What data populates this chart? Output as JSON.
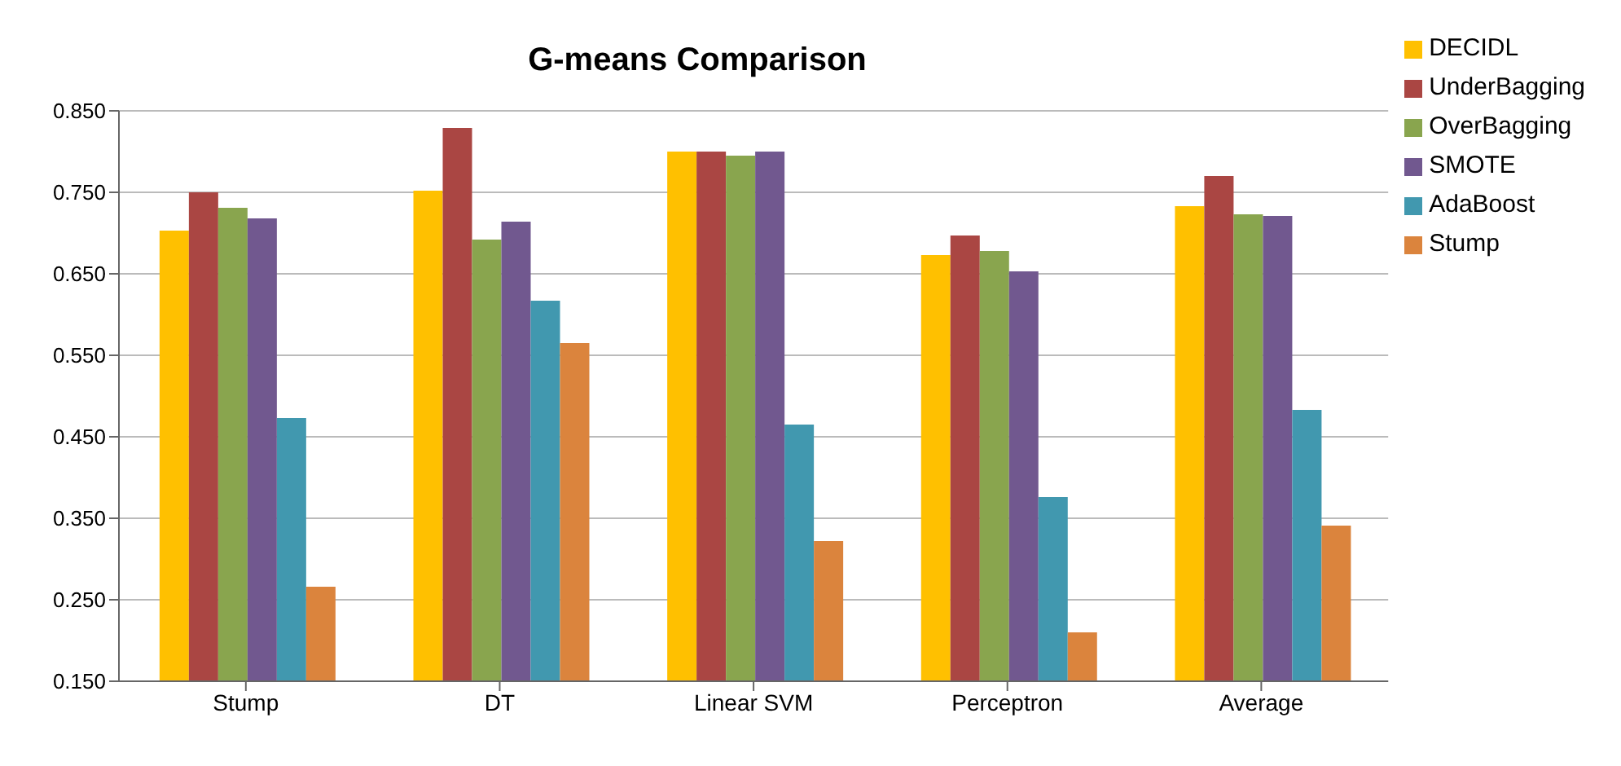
{
  "chart_data": {
    "type": "bar",
    "title": "G-means Comparison",
    "categories": [
      "Stump",
      "DT",
      "Linear SVM",
      "Perceptron",
      "Average"
    ],
    "series": [
      {
        "name": "DECIDL",
        "color": "#ffc000",
        "values": [
          0.703,
          0.752,
          0.8,
          0.673,
          0.733
        ]
      },
      {
        "name": "UnderBagging",
        "color": "#aa4643",
        "values": [
          0.75,
          0.829,
          0.8,
          0.697,
          0.77
        ]
      },
      {
        "name": "OverBagging",
        "color": "#89a54e",
        "values": [
          0.731,
          0.692,
          0.795,
          0.678,
          0.723
        ]
      },
      {
        "name": "SMOTE",
        "color": "#71588f",
        "values": [
          0.718,
          0.714,
          0.8,
          0.653,
          0.721
        ]
      },
      {
        "name": "AdaBoost",
        "color": "#4198af",
        "values": [
          0.473,
          0.617,
          0.465,
          0.376,
          0.483
        ]
      },
      {
        "name": "Stump",
        "color": "#db843d",
        "values": [
          0.266,
          0.565,
          0.322,
          0.21,
          0.341
        ]
      }
    ],
    "ylim": [
      0.15,
      0.85
    ],
    "yticks": [
      {
        "value": 0.15,
        "label": "0.150"
      },
      {
        "value": 0.25,
        "label": "0.250"
      },
      {
        "value": 0.35,
        "label": "0.350"
      },
      {
        "value": 0.45,
        "label": "0.450"
      },
      {
        "value": 0.55,
        "label": "0.550"
      },
      {
        "value": 0.65,
        "label": "0.650"
      },
      {
        "value": 0.75,
        "label": "0.750"
      },
      {
        "value": 0.85,
        "label": "0.850"
      }
    ],
    "grid": "y",
    "legend": "top right"
  }
}
